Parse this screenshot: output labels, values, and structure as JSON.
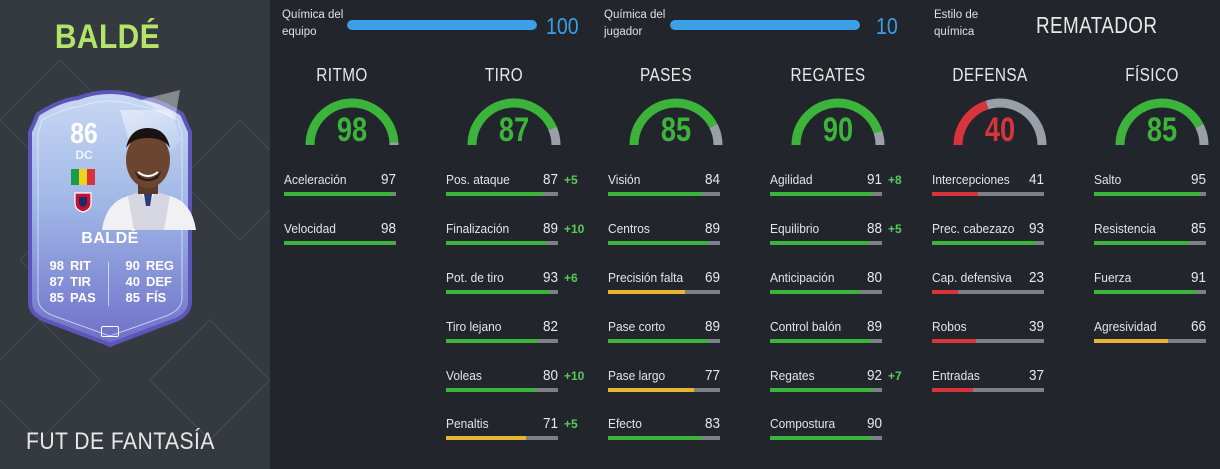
{
  "player": {
    "name": "BALDÉ",
    "card_type": "FUT DE FANTASÍA"
  },
  "card": {
    "rating": "86",
    "position": "DC",
    "name": "BALDÉ",
    "stats": [
      {
        "val": "98",
        "label": "RIT",
        "val2": "90",
        "label2": "REG"
      },
      {
        "val": "87",
        "label": "TIR",
        "val2": "40",
        "label2": "DEF"
      },
      {
        "val": "85",
        "label": "PAS",
        "val2": "85",
        "label2": "FÍS"
      }
    ]
  },
  "chemistry": {
    "team": {
      "label_line1": "Química del",
      "label_line2": "equipo",
      "value": "100",
      "fill": 1.0
    },
    "player": {
      "label_line1": "Química del",
      "label_line2": "jugador",
      "value": "10",
      "fill": 1.0
    },
    "style": {
      "label_line1": "Estilo de",
      "label_line2": "química",
      "value": "REMATADOR"
    }
  },
  "colors": {
    "green": "#3cb43c",
    "yellow": "#e7b52f",
    "red": "#d8343c",
    "track": "#7c8087",
    "blue": "#3aa0e8"
  },
  "categories": [
    {
      "title": "RITMO",
      "value": "98",
      "color": "green",
      "stats": [
        {
          "name": "Aceleración",
          "value": "97",
          "boost": ""
        },
        {
          "name": "Velocidad",
          "value": "98",
          "boost": ""
        }
      ]
    },
    {
      "title": "TIRO",
      "value": "87",
      "color": "green",
      "stats": [
        {
          "name": "Pos. ataque",
          "value": "87",
          "boost": "+5"
        },
        {
          "name": "Finalización",
          "value": "89",
          "boost": "+10"
        },
        {
          "name": "Pot. de tiro",
          "value": "93",
          "boost": "+6"
        },
        {
          "name": "Tiro lejano",
          "value": "82",
          "boost": ""
        },
        {
          "name": "Voleas",
          "value": "80",
          "boost": "+10"
        },
        {
          "name": "Penaltis",
          "value": "71",
          "boost": "+5"
        }
      ]
    },
    {
      "title": "PASES",
      "value": "85",
      "color": "green",
      "stats": [
        {
          "name": "Visión",
          "value": "84",
          "boost": ""
        },
        {
          "name": "Centros",
          "value": "89",
          "boost": ""
        },
        {
          "name": "Precisión falta",
          "value": "69",
          "boost": ""
        },
        {
          "name": "Pase corto",
          "value": "89",
          "boost": ""
        },
        {
          "name": "Pase largo",
          "value": "77",
          "boost": ""
        },
        {
          "name": "Efecto",
          "value": "83",
          "boost": ""
        }
      ]
    },
    {
      "title": "REGATES",
      "value": "90",
      "color": "green",
      "stats": [
        {
          "name": "Agilidad",
          "value": "91",
          "boost": "+8"
        },
        {
          "name": "Equilibrio",
          "value": "88",
          "boost": "+5"
        },
        {
          "name": "Anticipación",
          "value": "80",
          "boost": ""
        },
        {
          "name": "Control balón",
          "value": "89",
          "boost": ""
        },
        {
          "name": "Regates",
          "value": "92",
          "boost": "+7"
        },
        {
          "name": "Compostura",
          "value": "90",
          "boost": ""
        }
      ]
    },
    {
      "title": "DEFENSA",
      "value": "40",
      "color": "red",
      "stats": [
        {
          "name": "Intercepciones",
          "value": "41",
          "boost": ""
        },
        {
          "name": "Prec. cabezazo",
          "value": "93",
          "boost": ""
        },
        {
          "name": "Cap. defensiva",
          "value": "23",
          "boost": ""
        },
        {
          "name": "Robos",
          "value": "39",
          "boost": ""
        },
        {
          "name": "Entradas",
          "value": "37",
          "boost": ""
        }
      ]
    },
    {
      "title": "FÍSICO",
      "value": "85",
      "color": "green",
      "stats": [
        {
          "name": "Salto",
          "value": "95",
          "boost": ""
        },
        {
          "name": "Resistencia",
          "value": "85",
          "boost": ""
        },
        {
          "name": "Fuerza",
          "value": "91",
          "boost": ""
        },
        {
          "name": "Agresividad",
          "value": "66",
          "boost": ""
        }
      ]
    }
  ]
}
